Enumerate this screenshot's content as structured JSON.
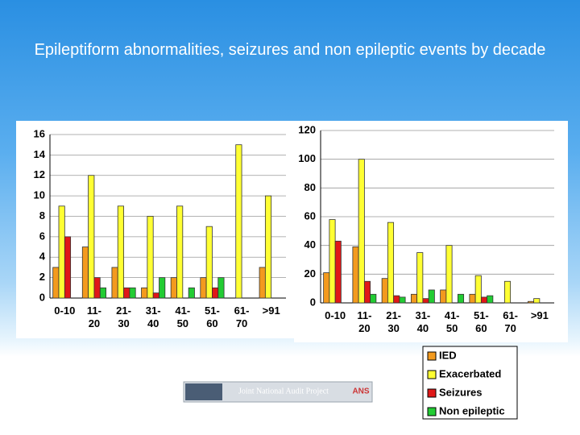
{
  "title": "Epileptiform abnormalities, seizures and non epileptic events by decade",
  "logo": {
    "text": "Joint National Audit Project",
    "badge": "ANS"
  },
  "chart_data": [
    {
      "type": "bar",
      "categories": [
        "0-10",
        "11- 20",
        "21- 30",
        "31- 40",
        "41- 50",
        "51- 60",
        "61- 70",
        ">91"
      ],
      "series": [
        {
          "color": "#f39a1e",
          "values": [
            3,
            5,
            3,
            1,
            2,
            2,
            0,
            3
          ]
        },
        {
          "color": "#ffff33",
          "values": [
            9,
            12,
            9,
            8,
            9,
            7,
            15,
            10
          ]
        },
        {
          "color": "#e01818",
          "values": [
            6,
            2,
            1,
            0.5,
            0,
            1,
            0,
            0
          ]
        },
        {
          "color": "#22cc33",
          "values": [
            0,
            1,
            1,
            2,
            1,
            2,
            0,
            0
          ]
        }
      ],
      "ylim": [
        0,
        16
      ],
      "yticks": [
        0,
        2,
        4,
        6,
        8,
        10,
        12,
        14,
        16
      ],
      "grid": true
    },
    {
      "type": "bar",
      "categories": [
        "0-10",
        "11- 20",
        "21- 30",
        "31- 40",
        "41- 50",
        "51- 60",
        "61- 70",
        ">91"
      ],
      "series": [
        {
          "name": "IED",
          "color": "#f39a1e",
          "values": [
            21,
            39,
            17,
            6,
            9,
            6,
            0,
            1
          ]
        },
        {
          "name": "Exacerbated",
          "color": "#ffff33",
          "values": [
            58,
            100,
            56,
            35,
            40,
            19,
            15,
            3
          ]
        },
        {
          "name": "Seizures",
          "color": "#e01818",
          "values": [
            43,
            15,
            5,
            3,
            0,
            4,
            0,
            0
          ]
        },
        {
          "name": "Non epileptic",
          "color": "#22cc33",
          "values": [
            0,
            6,
            4,
            9,
            6,
            5,
            0,
            0
          ]
        }
      ],
      "ylim": [
        0,
        120
      ],
      "yticks": [
        0,
        20,
        40,
        60,
        80,
        100,
        120
      ],
      "grid": true
    }
  ]
}
